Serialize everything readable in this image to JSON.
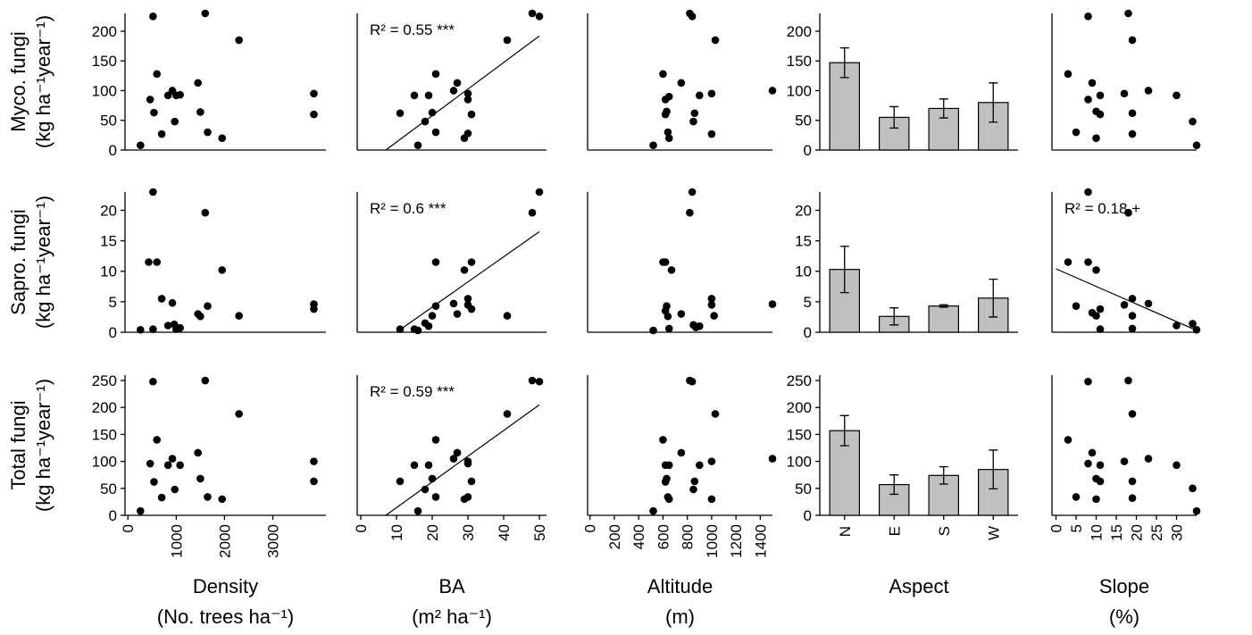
{
  "row_labels": [
    {
      "name": "Myco. fungi",
      "unit": "(kg ha⁻¹year⁻¹)"
    },
    {
      "name": "Sapro. fungi",
      "unit": "(kg ha⁻¹year⁻¹)"
    },
    {
      "name": "Total fungi",
      "unit": "(kg ha⁻¹year⁻¹)"
    }
  ],
  "column_labels": [
    {
      "name": "Density",
      "unit": "(No. trees ha⁻¹)"
    },
    {
      "name": "BA",
      "unit": "(m² ha⁻¹)"
    },
    {
      "name": "Altitude",
      "unit": "(m)"
    },
    {
      "name": "Aspect",
      "unit": ""
    },
    {
      "name": "Slope",
      "unit": "(%)"
    }
  ],
  "chart_data": [
    {
      "type": "scatter",
      "x": [
        260,
        520,
        600,
        460,
        540,
        700,
        830,
        920,
        1000,
        970,
        1080,
        1450,
        1500,
        1600,
        1650,
        1950,
        2300,
        3850,
        3850
      ],
      "values": [
        8,
        225,
        128,
        85,
        63,
        27,
        92,
        100,
        92,
        48,
        93,
        113,
        64,
        230,
        30,
        20,
        185,
        95,
        60
      ],
      "xlim": [
        -60,
        4100
      ],
      "ylim": [
        0,
        230
      ],
      "yticks": [
        0,
        50,
        100,
        150,
        200
      ]
    },
    {
      "type": "scatter",
      "x": [
        16,
        11,
        15,
        18,
        19,
        20,
        21,
        21,
        26,
        27,
        29,
        30,
        30,
        30,
        31,
        41,
        48,
        50
      ],
      "values": [
        8,
        62,
        92,
        48,
        92,
        63,
        128,
        30,
        100,
        113,
        20,
        95,
        85,
        28,
        60,
        185,
        230,
        225
      ],
      "xlim": [
        -1,
        52
      ],
      "ylim": [
        0,
        230
      ],
      "fit": {
        "x": [
          7,
          50
        ],
        "y": [
          0,
          192
        ]
      },
      "annotation": "R² = 0.55 ***"
    },
    {
      "type": "scatter",
      "x": [
        520,
        600,
        620,
        620,
        630,
        640,
        650,
        650,
        750,
        820,
        840,
        850,
        860,
        900,
        1000,
        1000,
        1030,
        1500
      ],
      "values": [
        8,
        128,
        85,
        60,
        65,
        30,
        20,
        90,
        113,
        230,
        225,
        48,
        62,
        92,
        95,
        27,
        185,
        100
      ],
      "xlim": [
        -20,
        1500
      ],
      "ylim": [
        0,
        230
      ]
    },
    {
      "type": "bar",
      "categories": [
        "N",
        "E",
        "S",
        "W"
      ],
      "values": [
        147,
        55,
        70,
        80
      ],
      "errors": [
        25,
        18,
        16,
        33
      ],
      "color": "#c0c0c0",
      "ylim": [
        0,
        230
      ],
      "yticks": [
        0,
        50,
        100,
        150,
        200
      ]
    },
    {
      "type": "scatter",
      "x": [
        3,
        5,
        8,
        8,
        9,
        10,
        10,
        11,
        11,
        17,
        18,
        19,
        19,
        19,
        23,
        30,
        34,
        35
      ],
      "values": [
        128,
        30,
        225,
        85,
        113,
        65,
        20,
        92,
        60,
        95,
        230,
        185,
        62,
        27,
        100,
        92,
        48,
        8
      ],
      "xlim": [
        -1,
        35
      ],
      "ylim": [
        0,
        230
      ]
    },
    {
      "type": "scatter",
      "x": [
        260,
        520,
        520,
        430,
        600,
        700,
        830,
        920,
        960,
        1000,
        1080,
        1450,
        1500,
        1600,
        1650,
        1950,
        2300,
        3850,
        3850
      ],
      "values": [
        0.4,
        23,
        0.5,
        11.5,
        11.5,
        5.5,
        1.1,
        4.8,
        1.3,
        0.5,
        0.7,
        3,
        2.6,
        19.6,
        4.3,
        10.2,
        2.7,
        4.6,
        3.8
      ],
      "xlim": [
        -60,
        4100
      ],
      "ylim": [
        0,
        23
      ],
      "yticks": [
        0,
        5,
        10,
        15,
        20
      ]
    },
    {
      "type": "scatter",
      "x": [
        11,
        15,
        16,
        18,
        19,
        20,
        21,
        21,
        26,
        27,
        29,
        30,
        30,
        31,
        31,
        41,
        48,
        50
      ],
      "values": [
        0.5,
        0.5,
        0.3,
        1.5,
        1,
        2.7,
        11.5,
        4.3,
        4.7,
        3,
        10.2,
        5.5,
        4.5,
        3.8,
        11.5,
        2.7,
        19.6,
        23
      ],
      "xlim": [
        -1,
        52
      ],
      "ylim": [
        0,
        23
      ],
      "fit": {
        "x": [
          10,
          50
        ],
        "y": [
          0,
          16.5
        ]
      },
      "annotation": "R² = 0.6 ***"
    },
    {
      "type": "scatter",
      "x": [
        520,
        600,
        620,
        630,
        620,
        640,
        650,
        670,
        750,
        820,
        840,
        850,
        870,
        900,
        1000,
        1000,
        1020,
        1500
      ],
      "values": [
        0.3,
        11.5,
        11.5,
        4.3,
        3.5,
        2.6,
        0.6,
        10.2,
        3,
        19.6,
        23,
        1.2,
        0.8,
        1,
        5.5,
        4.5,
        2.7,
        4.6
      ],
      "xlim": [
        -20,
        1500
      ],
      "ylim": [
        0,
        23
      ]
    },
    {
      "type": "bar",
      "categories": [
        "N",
        "E",
        "S",
        "W"
      ],
      "values": [
        10.3,
        2.6,
        4.3,
        5.6
      ],
      "errors": [
        3.8,
        1.4,
        0.2,
        3.1
      ],
      "color": "#c0c0c0",
      "ylim": [
        0,
        23
      ],
      "yticks": [
        0,
        5,
        10,
        15,
        20
      ]
    },
    {
      "type": "scatter",
      "x": [
        3,
        5,
        8,
        8,
        9,
        10,
        10,
        11,
        11,
        17,
        18,
        19,
        19,
        19,
        23,
        30,
        34,
        35
      ],
      "values": [
        11.5,
        4.3,
        23,
        11.5,
        3.2,
        10.2,
        2.7,
        3.8,
        0.5,
        4.5,
        19.6,
        5.5,
        2.7,
        0.6,
        4.7,
        1.1,
        1.4,
        0.4
      ],
      "xlim": [
        -1,
        35
      ],
      "ylim": [
        0,
        23
      ],
      "fit": {
        "x": [
          0,
          35
        ],
        "y": [
          10.4,
          0.3
        ]
      },
      "annotation": "R² = 0.18 +"
    },
    {
      "type": "scatter",
      "x": [
        260,
        520,
        600,
        460,
        540,
        700,
        830,
        920,
        970,
        1080,
        1450,
        1500,
        1600,
        1650,
        1950,
        2300,
        3850,
        3850
      ],
      "values": [
        8,
        248,
        140,
        96,
        62,
        33,
        93,
        105,
        48,
        93,
        116,
        68,
        250,
        34,
        30,
        188,
        100,
        63
      ],
      "xlim": [
        -60,
        4100
      ],
      "ylim": [
        0,
        260
      ],
      "yticks": [
        0,
        50,
        100,
        150,
        200,
        250
      ],
      "xticks": [
        0,
        1000,
        2000,
        3000
      ]
    },
    {
      "type": "scatter",
      "x": [
        16,
        11,
        15,
        18,
        19,
        20,
        21,
        21,
        26,
        27,
        29,
        30,
        30,
        30,
        31,
        41,
        48,
        50
      ],
      "values": [
        8,
        63,
        93,
        48,
        93,
        68,
        140,
        34,
        105,
        116,
        30,
        100,
        96,
        34,
        63,
        188,
        250,
        248
      ],
      "xlim": [
        -1,
        52
      ],
      "ylim": [
        0,
        260
      ],
      "xticks": [
        0,
        10,
        20,
        30,
        40,
        50
      ],
      "fit": {
        "x": [
          7,
          50
        ],
        "y": [
          0,
          205
        ]
      },
      "annotation": "R² = 0.59 ***"
    },
    {
      "type": "scatter",
      "x": [
        520,
        600,
        620,
        620,
        630,
        640,
        650,
        650,
        750,
        820,
        840,
        850,
        860,
        900,
        1000,
        1000,
        1030,
        1500
      ],
      "values": [
        8,
        140,
        93,
        62,
        68,
        34,
        30,
        93,
        116,
        250,
        248,
        48,
        63,
        93,
        100,
        30,
        188,
        105
      ],
      "xlim": [
        -20,
        1500
      ],
      "ylim": [
        0,
        260
      ],
      "xticks": [
        0,
        200,
        400,
        600,
        800,
        1000,
        1200,
        1400
      ]
    },
    {
      "type": "bar",
      "categories": [
        "N",
        "E",
        "S",
        "W"
      ],
      "values": [
        157,
        57,
        74,
        85
      ],
      "errors": [
        28,
        18,
        16,
        36
      ],
      "color": "#c0c0c0",
      "ylim": [
        0,
        260
      ],
      "yticks": [
        0,
        50,
        100,
        150,
        200,
        250
      ],
      "show_categories": true
    },
    {
      "type": "scatter",
      "x": [
        3,
        5,
        8,
        8,
        9,
        10,
        10,
        11,
        11,
        17,
        18,
        19,
        19,
        19,
        23,
        30,
        34,
        35
      ],
      "values": [
        140,
        34,
        248,
        96,
        116,
        68,
        30,
        93,
        63,
        100,
        250,
        188,
        63,
        32,
        105,
        93,
        50,
        8
      ],
      "xlim": [
        -1,
        35
      ],
      "ylim": [
        0,
        260
      ],
      "xticks": [
        0,
        5,
        10,
        15,
        20,
        25,
        30
      ]
    }
  ]
}
